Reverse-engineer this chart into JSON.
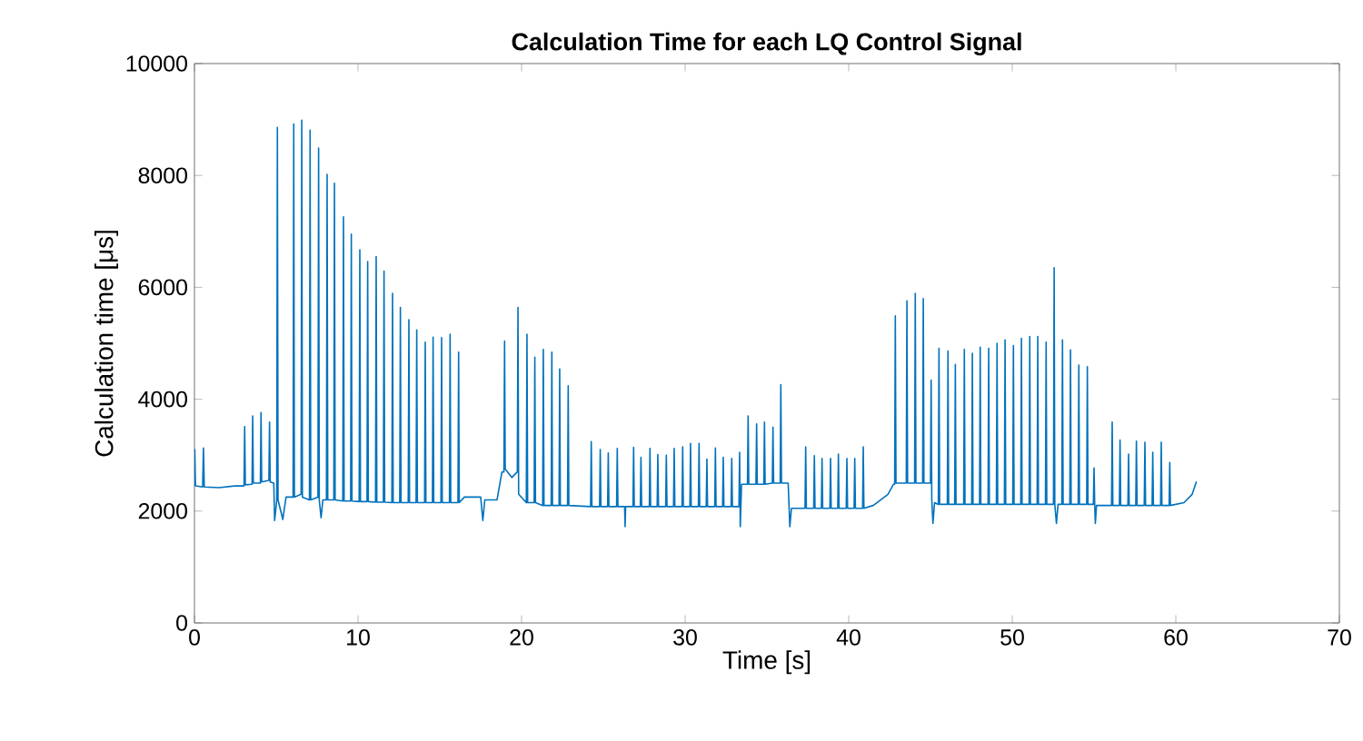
{
  "chart_data": {
    "type": "line",
    "title": "Calculation Time for each LQ Control Signal",
    "xlabel": "Time [s]",
    "ylabel": "Calculation time [μs]",
    "xlim": [
      0,
      70
    ],
    "ylim": [
      0,
      10000
    ],
    "xticks": [
      0,
      10,
      20,
      30,
      40,
      50,
      60,
      70
    ],
    "yticks": [
      0,
      2000,
      4000,
      6000,
      8000,
      10000
    ],
    "line_style": "solid",
    "x": [
      0,
      0.02,
      0.06,
      0.5,
      0.55,
      0.6,
      1.5,
      2.5,
      3.03,
      3.07,
      3.11,
      3.52,
      3.56,
      3.6,
      4.03,
      4.07,
      4.11,
      4.55,
      4.59,
      4.63,
      4.85,
      4.9,
      5.0,
      5.03,
      5.07,
      5.11,
      5.4,
      5.6,
      6.03,
      6.07,
      6.11,
      6.52,
      6.56,
      6.6,
      7.03,
      7.07,
      7.11,
      7.55,
      7.59,
      7.63,
      7.74,
      7.85,
      8.07,
      8.11,
      8.15,
      8.52,
      8.56,
      8.6,
      9.07,
      9.11,
      9.15,
      9.55,
      9.59,
      9.63,
      10.07,
      10.11,
      10.15,
      10.55,
      10.59,
      10.63,
      11.07,
      11.11,
      11.15,
      11.55,
      11.59,
      11.63,
      12.07,
      12.11,
      12.15,
      12.55,
      12.59,
      12.63,
      13.07,
      13.11,
      13.15,
      13.55,
      13.59,
      13.63,
      14.07,
      14.11,
      14.15,
      14.55,
      14.59,
      14.63,
      15.07,
      15.11,
      15.15,
      15.59,
      15.63,
      15.67,
      16.11,
      16.15,
      16.19,
      16.5,
      17.5,
      17.63,
      17.75,
      18.5,
      18.8,
      18.92,
      18.96,
      19.0,
      19.4,
      19.74,
      19.78,
      19.82,
      20.29,
      20.33,
      20.37,
      20.77,
      20.81,
      20.85,
      21.29,
      21.33,
      21.37,
      21.81,
      21.85,
      21.89,
      22.29,
      22.33,
      22.37,
      22.81,
      22.85,
      22.89,
      24.22,
      24.26,
      24.3,
      24.77,
      24.81,
      24.85,
      25.26,
      25.3,
      25.34,
      25.81,
      25.85,
      25.89,
      26.3,
      26.33,
      26.36,
      26.81,
      26.85,
      26.89,
      27.26,
      27.3,
      27.34,
      27.81,
      27.85,
      27.89,
      28.29,
      28.33,
      28.37,
      28.81,
      28.85,
      28.89,
      29.29,
      29.33,
      29.37,
      29.81,
      29.85,
      29.89,
      30.29,
      30.33,
      30.37,
      30.81,
      30.85,
      30.89,
      31.29,
      31.33,
      31.37,
      31.81,
      31.85,
      31.89,
      32.29,
      32.33,
      32.37,
      32.81,
      32.85,
      32.89,
      33.29,
      33.33,
      33.37,
      33.45,
      33.81,
      33.85,
      33.89,
      34.33,
      34.37,
      34.41,
      34.81,
      34.85,
      34.89,
      35.33,
      35.37,
      35.41,
      35.81,
      35.85,
      35.89,
      36.3,
      36.4,
      36.5,
      37.33,
      37.37,
      37.41,
      37.86,
      37.9,
      37.94,
      38.33,
      38.37,
      38.41,
      38.85,
      38.89,
      38.93,
      39.33,
      39.37,
      39.41,
      39.85,
      39.89,
      39.93,
      40.33,
      40.37,
      40.41,
      40.85,
      40.89,
      40.93,
      41.5,
      42.4,
      42.74,
      42.81,
      42.85,
      42.89,
      43.52,
      43.56,
      43.6,
      44.03,
      44.07,
      44.11,
      44.52,
      44.56,
      44.6,
      45.0,
      45.04,
      45.08,
      45.15,
      45.25,
      45.48,
      45.52,
      45.56,
      46.03,
      46.07,
      46.11,
      46.48,
      46.52,
      46.56,
      47.03,
      47.07,
      47.11,
      47.52,
      47.56,
      47.6,
      48.0,
      48.04,
      48.08,
      48.52,
      48.56,
      48.6,
      49.03,
      49.07,
      49.11,
      49.52,
      49.56,
      49.6,
      50.03,
      50.07,
      50.11,
      50.52,
      50.56,
      50.6,
      51.03,
      51.07,
      51.11,
      51.52,
      51.56,
      51.6,
      52.03,
      52.07,
      52.11,
      52.52,
      52.56,
      52.6,
      52.7,
      52.8,
      53.03,
      53.07,
      53.11,
      53.52,
      53.56,
      53.6,
      54.03,
      54.07,
      54.11,
      54.55,
      54.59,
      54.63,
      54.96,
      55.0,
      55.04,
      55.08,
      55.15,
      56.07,
      56.11,
      56.15,
      56.55,
      56.59,
      56.63,
      57.07,
      57.11,
      57.15,
      57.55,
      57.59,
      57.63,
      58.07,
      58.11,
      58.15,
      58.55,
      58.59,
      58.63,
      59.07,
      59.11,
      59.15,
      59.59,
      59.63,
      59.67,
      60.5,
      61.0,
      61.26
    ],
    "series": [
      {
        "color": "#0072bd",
        "values": [
          2450,
          3100,
          2450,
          2430,
          3130,
          2430,
          2420,
          2450,
          2450,
          3510,
          2470,
          2480,
          3700,
          2500,
          2500,
          3760,
          2520,
          2550,
          3590,
          2520,
          2500,
          1830,
          2100,
          2200,
          8860,
          2200,
          1850,
          2250,
          2250,
          8920,
          2250,
          2300,
          8990,
          2250,
          2200,
          8810,
          2200,
          2250,
          8490,
          2200,
          1880,
          2200,
          2200,
          8020,
          2200,
          2200,
          7860,
          2200,
          2180,
          7260,
          2180,
          2180,
          6950,
          2180,
          2170,
          6670,
          2170,
          2170,
          6460,
          2170,
          2160,
          6550,
          2160,
          2160,
          6290,
          2160,
          2150,
          5890,
          2150,
          2150,
          5640,
          2150,
          2150,
          5420,
          2150,
          2150,
          5240,
          2150,
          2150,
          5020,
          2150,
          2150,
          5110,
          2150,
          2150,
          5100,
          2150,
          2150,
          5160,
          2150,
          2150,
          4840,
          2150,
          2250,
          2250,
          1830,
          2200,
          2200,
          2700,
          2700,
          5040,
          2750,
          2600,
          2700,
          5640,
          2300,
          2150,
          5160,
          2150,
          2150,
          4750,
          2150,
          2100,
          4890,
          2100,
          2100,
          4840,
          2100,
          2100,
          4540,
          2100,
          2100,
          4240,
          2100,
          2080,
          3240,
          2080,
          2080,
          3100,
          2080,
          2080,
          3040,
          2080,
          2080,
          3120,
          2080,
          2080,
          1720,
          2080,
          2080,
          3140,
          2080,
          2080,
          2960,
          2080,
          2080,
          3120,
          2080,
          2080,
          3010,
          2080,
          2080,
          3000,
          2080,
          2080,
          3120,
          2080,
          2080,
          3150,
          2080,
          2080,
          3210,
          2080,
          2080,
          3210,
          2080,
          2080,
          2930,
          2080,
          2080,
          3130,
          2080,
          2080,
          2960,
          2080,
          2080,
          2940,
          2080,
          2080,
          3050,
          1720,
          2480,
          2480,
          3700,
          2480,
          2480,
          3560,
          2480,
          2480,
          3590,
          2480,
          2500,
          3500,
          2500,
          2500,
          4260,
          2500,
          2500,
          1720,
          2050,
          2050,
          3150,
          2050,
          2050,
          2990,
          2050,
          2050,
          2940,
          2050,
          2050,
          2940,
          2050,
          2050,
          3020,
          2050,
          2050,
          2940,
          2050,
          2050,
          2940,
          2050,
          2050,
          3150,
          2050,
          2100,
          2300,
          2480,
          2480,
          5490,
          2500,
          2500,
          5760,
          2500,
          2500,
          5890,
          2500,
          2500,
          5800,
          2500,
          2500,
          4340,
          2200,
          1780,
          2150,
          2120,
          4910,
          2120,
          2120,
          4860,
          2120,
          2120,
          4620,
          2120,
          2120,
          4890,
          2120,
          2120,
          4820,
          2120,
          2120,
          4930,
          2120,
          2120,
          4910,
          2120,
          2120,
          5000,
          2120,
          2120,
          5060,
          2120,
          2120,
          4960,
          2120,
          2120,
          5090,
          2120,
          2120,
          5120,
          2120,
          2120,
          5120,
          2120,
          2120,
          5020,
          2120,
          2120,
          6350,
          2120,
          1780,
          2120,
          2120,
          5060,
          2120,
          2120,
          4880,
          2120,
          2120,
          4610,
          2120,
          2120,
          4580,
          2120,
          2120,
          2770,
          2120,
          1780,
          2100,
          2100,
          3590,
          2100,
          2100,
          3270,
          2100,
          2100,
          3020,
          2100,
          2100,
          3250,
          2100,
          2100,
          3230,
          2100,
          2100,
          3050,
          2100,
          2100,
          3230,
          2100,
          2100,
          2870,
          2100,
          2150,
          2300,
          2530
        ]
      }
    ]
  }
}
